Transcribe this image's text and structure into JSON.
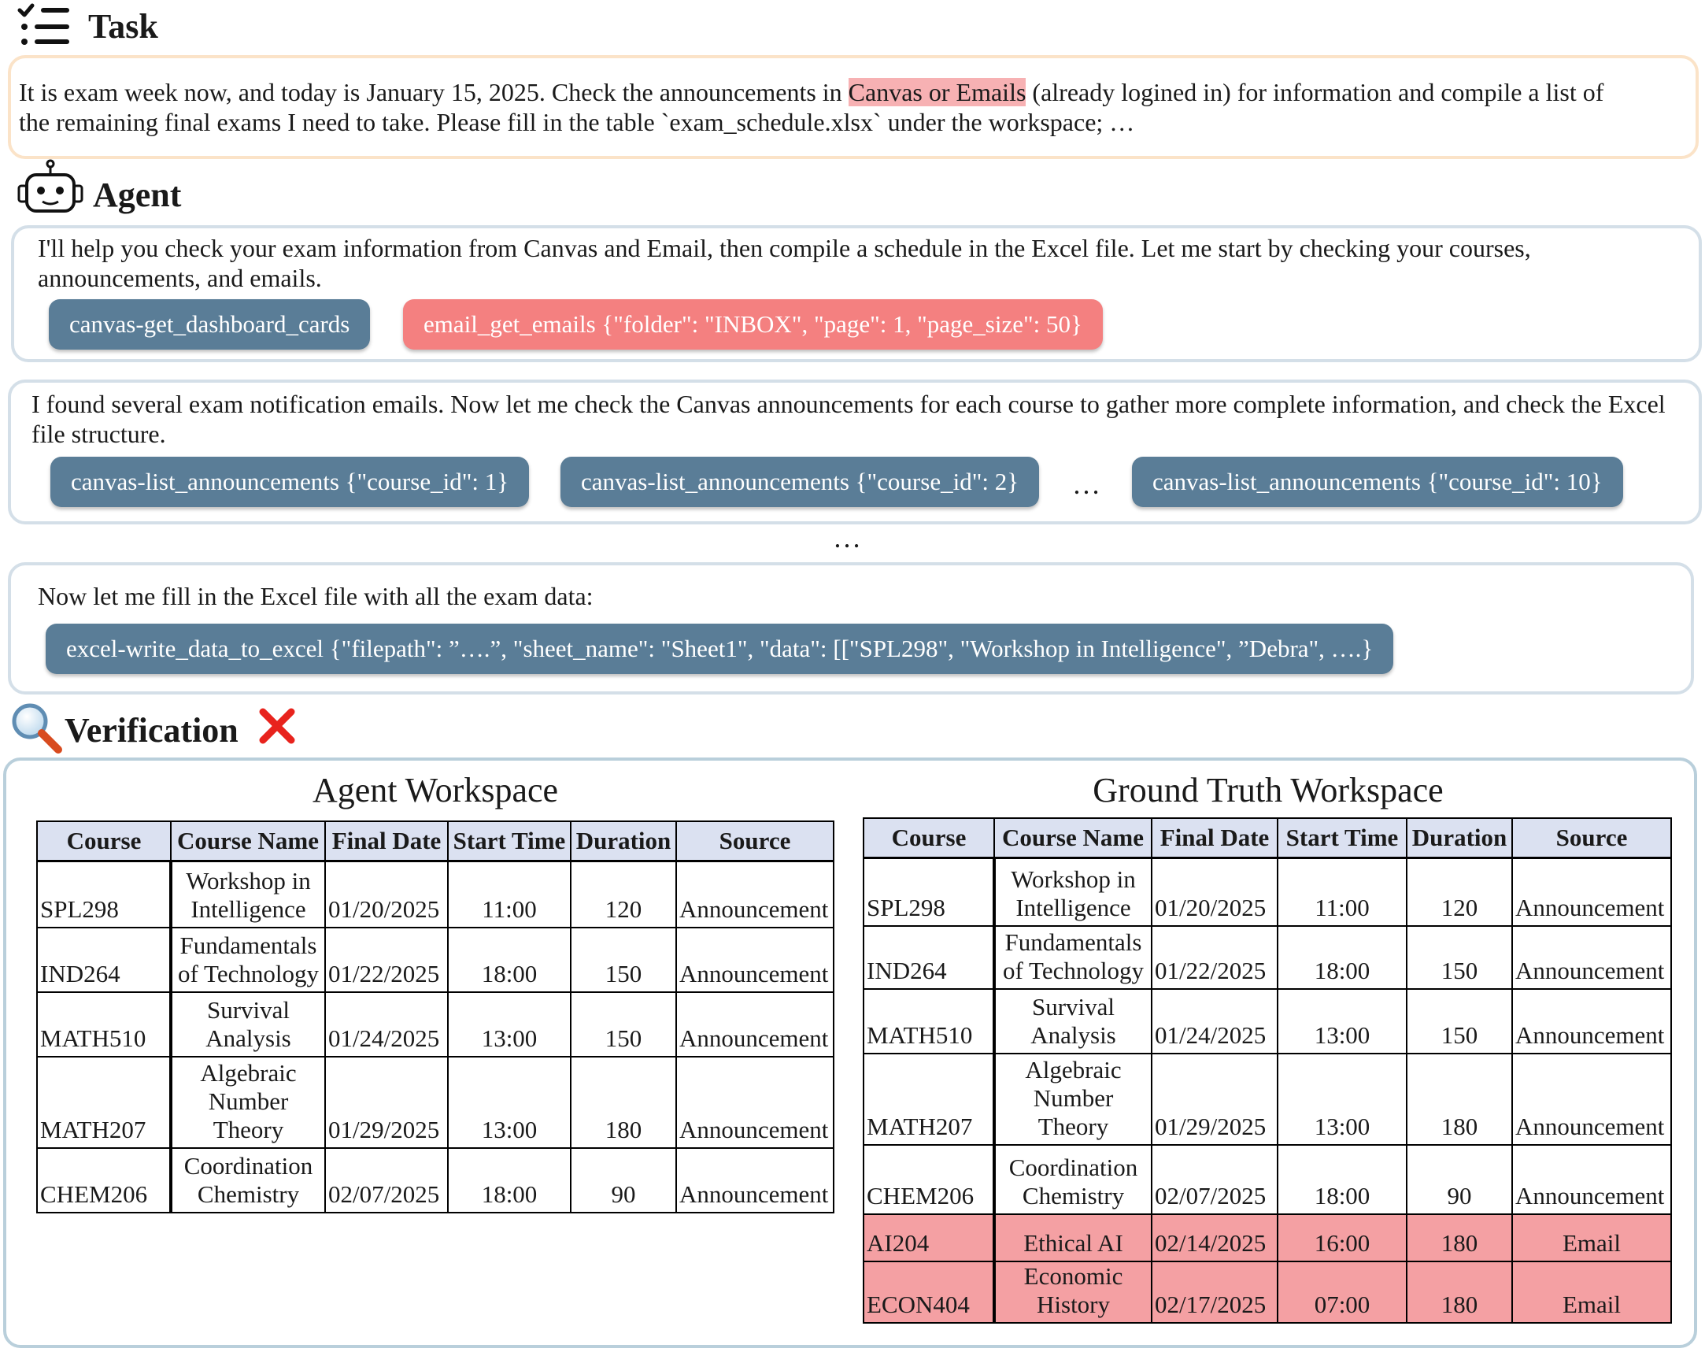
{
  "task": {
    "heading": "Task",
    "text_before": "It is exam week now, and today is January 15, 2025. Check the announcements in ",
    "text_highlight": "Canvas or Emails",
    "text_after_line1": " (already logined in) for information and compile a list of",
    "text_line2": "the remaining final exams I need to take. Please fill in the table `exam_schedule.xlsx` under the workspace; …"
  },
  "agent": {
    "heading": "Agent",
    "steps": [
      {
        "text": "I'll help you check your exam information from Canvas and Email, then compile a schedule in the Excel file. Let me start by checking your courses, announcements, and emails.",
        "calls": [
          "canvas-get_dashboard_cards",
          "email_get_emails {\"folder\": \"INBOX\", \"page\": 1, \"page_size\": 50}"
        ]
      },
      {
        "text": "I found several exam notification emails. Now let me check the Canvas announcements for each course to gather more complete information, and check the Excel file structure.",
        "calls": [
          "canvas-list_announcements {\"course_id\": 1}",
          "canvas-list_announcements {\"course_id\": 2}",
          "canvas-list_announcements {\"course_id\": 10}"
        ],
        "ellipsis": "…"
      },
      {
        "text": "Now let me fill in the Excel file with all the exam data:",
        "calls": [
          "excel-write_data_to_excel {\"filepath\": ”….”, \"sheet_name\": \"Sheet1\", \"data\": [[\"SPL298\", \"Workshop in Intelligence\", ”Debra\", ….}"
        ]
      }
    ],
    "between_ellipsis": "…"
  },
  "verification": {
    "heading": "Verification",
    "result_icon": "cross-mark-icon",
    "colors": {
      "error_row": "#f4a0a3",
      "header_fill": "#dbe1f1",
      "call_blue": "#5a7d97",
      "call_red": "#f48080"
    },
    "columns": [
      "Course",
      "Course Name",
      "Final Date",
      "Start Time",
      "Duration",
      "Source"
    ],
    "agent_workspace": {
      "title": "Agent Workspace",
      "rows": [
        {
          "course": "SPL298",
          "name_lines": [
            "Workshop in",
            "Intelligence"
          ],
          "date": "01/20/2025",
          "time": "11:00",
          "duration": "120",
          "source": "Announcement"
        },
        {
          "course": "IND264",
          "name_lines": [
            "Fundamentals",
            "of Technology"
          ],
          "date": "01/22/2025",
          "time": "18:00",
          "duration": "150",
          "source": "Announcement"
        },
        {
          "course": "MATH510",
          "name_lines": [
            "Survival",
            "Analysis"
          ],
          "date": "01/24/2025",
          "time": "13:00",
          "duration": "150",
          "source": "Announcement"
        },
        {
          "course": "MATH207",
          "name_lines": [
            "Algebraic",
            "Number",
            "Theory"
          ],
          "date": "01/29/2025",
          "time": "13:00",
          "duration": "180",
          "source": "Announcement"
        },
        {
          "course": "CHEM206",
          "name_lines": [
            "Coordination",
            "Chemistry"
          ],
          "date": "02/07/2025",
          "time": "18:00",
          "duration": "90",
          "source": "Announcement"
        }
      ]
    },
    "ground_truth_workspace": {
      "title": "Ground Truth Workspace",
      "rows": [
        {
          "course": "SPL298",
          "name_lines": [
            "Workshop in",
            "Intelligence"
          ],
          "date": "01/20/2025",
          "time": "11:00",
          "duration": "120",
          "source": "Announcement"
        },
        {
          "course": "IND264",
          "name_lines": [
            "Fundamentals",
            "of Technology"
          ],
          "date": "01/22/2025",
          "time": "18:00",
          "duration": "150",
          "source": "Announcement"
        },
        {
          "course": "MATH510",
          "name_lines": [
            "Survival",
            "Analysis"
          ],
          "date": "01/24/2025",
          "time": "13:00",
          "duration": "150",
          "source": "Announcement"
        },
        {
          "course": "MATH207",
          "name_lines": [
            "Algebraic",
            "Number",
            "Theory"
          ],
          "date": "01/29/2025",
          "time": "13:00",
          "duration": "180",
          "source": "Announcement"
        },
        {
          "course": "CHEM206",
          "name_lines": [
            "Coordination",
            "Chemistry"
          ],
          "date": "02/07/2025",
          "time": "18:00",
          "duration": "90",
          "source": "Announcement"
        },
        {
          "course": "AI204",
          "name_lines": [
            "Ethical AI"
          ],
          "date": "02/14/2025",
          "time": "16:00",
          "duration": "180",
          "source": "Email",
          "missing_in_agent": true
        },
        {
          "course": "ECON404",
          "name_lines": [
            "Economic",
            "History"
          ],
          "date": "02/17/2025",
          "time": "07:00",
          "duration": "180",
          "source": "Email",
          "missing_in_agent": true
        }
      ]
    }
  }
}
